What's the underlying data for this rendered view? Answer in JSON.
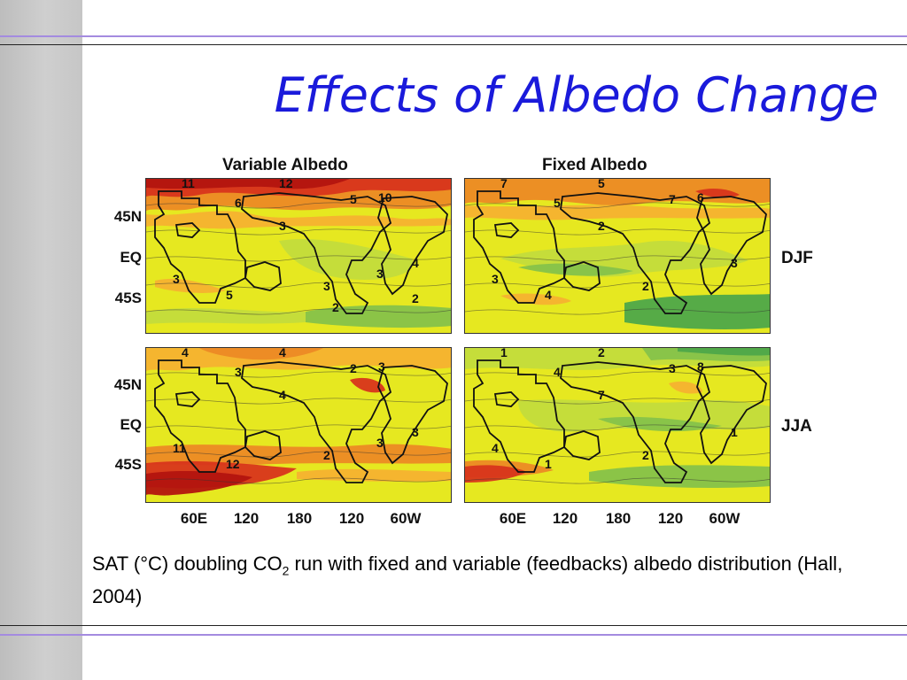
{
  "slide": {
    "title": "Effects of Albedo Change",
    "caption_part1": "SAT (°C) doubling CO",
    "caption_sub": "2",
    "caption_part2": " run with fixed and variable (feedbacks) albedo distribution (Hall, 2004)"
  },
  "figure": {
    "columns": [
      {
        "title": "Variable Albedo"
      },
      {
        "title": "Fixed Albedo"
      }
    ],
    "seasons": [
      "DJF",
      "JJA"
    ],
    "lat_labels": [
      "45N",
      "EQ",
      "45S"
    ],
    "lon_labels": [
      "60E",
      "120",
      "180",
      "120",
      "60W"
    ],
    "panels": [
      {
        "contour_labels": [
          "11",
          "12",
          "6",
          "5",
          "10",
          "3",
          "3",
          "5",
          "4",
          "3",
          "3",
          "2",
          "2"
        ]
      },
      {
        "contour_labels": [
          "7",
          "5",
          "5",
          "7",
          "6",
          "2",
          "3",
          "4",
          "3",
          "2"
        ]
      },
      {
        "contour_labels": [
          "4",
          "4",
          "3",
          "2",
          "3",
          "4",
          "11",
          "12",
          "3",
          "2",
          "3"
        ]
      },
      {
        "contour_labels": [
          "1",
          "2",
          "4",
          "3",
          "8",
          "7",
          "4",
          "1",
          "1",
          "2"
        ]
      }
    ],
    "colors": {
      "deep_red": "#b3140f",
      "red": "#d8351c",
      "orange": "#ec8a25",
      "light_orange": "#f5b230",
      "yellow": "#e6e820",
      "light_green": "#c3dc3c",
      "green": "#86c24a",
      "dark_green": "#4ea84a"
    }
  }
}
